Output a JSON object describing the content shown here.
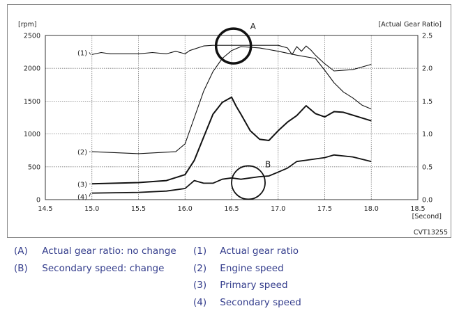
{
  "chart_data": {
    "type": "line",
    "y_left_unit": "[rpm]",
    "y_right_unit": "[Actual Gear Ratio]",
    "x_unit": "[Second]",
    "xlim": [
      14.5,
      18.5
    ],
    "ylim": [
      0,
      2500
    ],
    "y2lim": [
      0,
      2.5
    ],
    "x_ticks": [
      "14.5",
      "15.0",
      "15.5",
      "16.0",
      "16.5",
      "17.0",
      "17.5",
      "18.0",
      "18.5"
    ],
    "y_ticks": [
      "0",
      "500",
      "1000",
      "1500",
      "2000",
      "2500"
    ],
    "y2_ticks": [
      "0.0",
      "0.5",
      "1.0",
      "1.5",
      "2.0",
      "2.5"
    ],
    "grid": true,
    "figure_code": "CVT13255",
    "series": [
      {
        "name": "(1)",
        "axis": "right",
        "x": [
          15.0,
          15.1,
          15.2,
          15.5,
          15.65,
          15.8,
          15.9,
          16.0,
          16.05,
          16.2,
          16.3,
          16.5,
          16.8,
          17.0,
          17.1,
          17.15,
          17.2,
          17.25,
          17.3,
          17.35,
          17.4,
          17.5,
          17.6,
          17.8,
          18.0
        ],
        "y": [
          2.21,
          2.24,
          2.22,
          2.22,
          2.24,
          2.22,
          2.26,
          2.22,
          2.27,
          2.34,
          2.35,
          2.35,
          2.35,
          2.35,
          2.31,
          2.21,
          2.33,
          2.26,
          2.34,
          2.28,
          2.2,
          2.07,
          1.96,
          1.98,
          2.06
        ]
      },
      {
        "name": "(2)",
        "axis": "left",
        "x": [
          15.0,
          15.5,
          15.9,
          16.0,
          16.1,
          16.2,
          16.3,
          16.4,
          16.5,
          16.6,
          16.8,
          17.0,
          17.2,
          17.4,
          17.5,
          17.6,
          17.7,
          17.8,
          17.9,
          18.0
        ],
        "y": [
          730,
          700,
          730,
          850,
          1250,
          1650,
          1950,
          2150,
          2270,
          2330,
          2310,
          2260,
          2200,
          2150,
          1970,
          1780,
          1640,
          1550,
          1440,
          1380
        ]
      },
      {
        "name": "(3)",
        "axis": "left",
        "x": [
          15.0,
          15.5,
          15.8,
          16.0,
          16.1,
          16.2,
          16.3,
          16.4,
          16.5,
          16.55,
          16.6,
          16.7,
          16.8,
          16.9,
          17.0,
          17.1,
          17.2,
          17.3,
          17.4,
          17.5,
          17.6,
          17.7,
          18.0
        ],
        "y": [
          240,
          260,
          290,
          380,
          600,
          950,
          1300,
          1480,
          1560,
          1420,
          1300,
          1050,
          920,
          900,
          1050,
          1180,
          1280,
          1430,
          1310,
          1260,
          1340,
          1330,
          1200
        ]
      },
      {
        "name": "(4)",
        "axis": "left",
        "x": [
          15.0,
          15.5,
          15.8,
          16.0,
          16.1,
          16.2,
          16.3,
          16.4,
          16.5,
          16.6,
          16.7,
          16.8,
          16.9,
          17.0,
          17.1,
          17.2,
          17.3,
          17.4,
          17.5,
          17.6,
          17.8,
          18.0
        ],
        "y": [
          100,
          110,
          130,
          170,
          290,
          250,
          250,
          310,
          330,
          310,
          330,
          350,
          360,
          420,
          480,
          580,
          600,
          620,
          640,
          680,
          650,
          580
        ]
      }
    ],
    "annotations": [
      {
        "label": "A",
        "x": 16.52,
        "y2": 2.34
      },
      {
        "label": "B",
        "x": 16.68,
        "y": 260
      }
    ]
  },
  "legend": {
    "left": [
      {
        "tag": "(A)",
        "text": "Actual gear ratio: no change"
      },
      {
        "tag": "(B)",
        "text": "Secondary speed: change"
      }
    ],
    "right": [
      {
        "tag": "(1)",
        "text": "Actual gear ratio"
      },
      {
        "tag": "(2)",
        "text": "Engine speed"
      },
      {
        "tag": "(3)",
        "text": "Primary speed"
      },
      {
        "tag": "(4)",
        "text": "Secondary speed"
      }
    ]
  }
}
